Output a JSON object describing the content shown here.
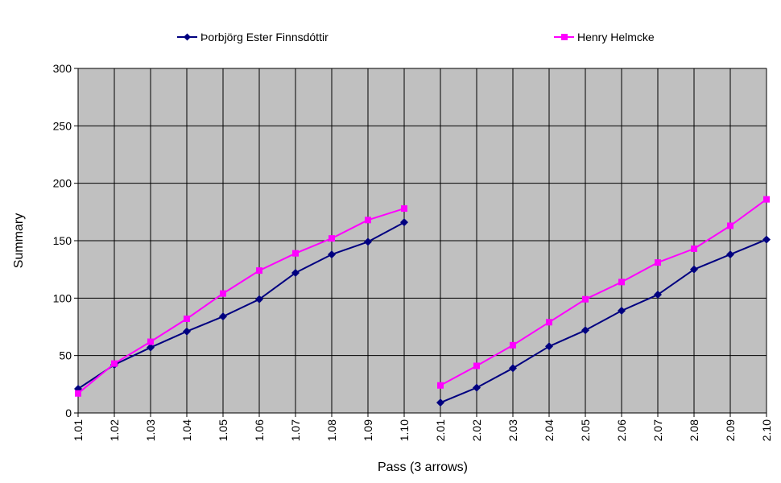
{
  "chart_data": {
    "type": "line",
    "xlabel": "Pass (3 arrows)",
    "ylabel": "Summary",
    "ylim": [
      0,
      300
    ],
    "yticks": [
      0,
      50,
      100,
      150,
      200,
      250,
      300
    ],
    "grid": true,
    "legend_position": "top",
    "plot_background": "#c0c0c0",
    "categories": [
      "1.01",
      "1.02",
      "1.03",
      "1.04",
      "1.05",
      "1.06",
      "1.07",
      "1.08",
      "1.09",
      "1.10",
      "2.01",
      "2.02",
      "2.03",
      "2.04",
      "2.05",
      "2.06",
      "2.07",
      "2.08",
      "2.09",
      "2.10"
    ],
    "series": [
      {
        "name": "Þorbjörg Ester Finnsdóttir",
        "color": "#000080",
        "marker": "diamond",
        "values": [
          21,
          42,
          57,
          71,
          84,
          99,
          122,
          138,
          149,
          166,
          9,
          22,
          39,
          58,
          72,
          89,
          103,
          125,
          138,
          151
        ]
      },
      {
        "name": "Henry Helmcke",
        "color": "#ff00ff",
        "marker": "square",
        "values": [
          17,
          43,
          62,
          82,
          104,
          124,
          139,
          152,
          168,
          178,
          24,
          41,
          59,
          79,
          99,
          114,
          131,
          143,
          163,
          186
        ]
      }
    ],
    "breaks_after": [
      "1.10"
    ]
  }
}
